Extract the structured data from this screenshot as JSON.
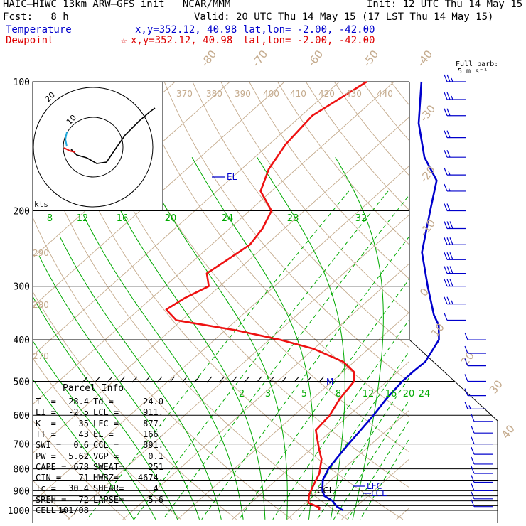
{
  "header": {
    "model_line": "HAIC–HIWC 13km ARW–GFS init   NCAR/MMM",
    "init": "Init: 12 UTC Thu 14 May 15",
    "fcst": "Fcst:   8 h",
    "valid": "Valid: 20 UTC Thu 14 May 15 (17 LST Thu 14 May 15)",
    "temperature_label": "Temperature",
    "temperature_xy": "x,y=352.12, 40.98",
    "temperature_latlon": "lat,lon= -2.00, -42.00",
    "dewpoint_label": "Dewpoint",
    "dewpoint_marker": "☆",
    "dewpoint_xy": "x,y=352.12, 40.98",
    "dewpoint_latlon": "lat,lon= -2.00, -42.00"
  },
  "wind_legend": {
    "title": "Full barb:",
    "speed": "5 m s⁻¹"
  },
  "hodograph": {
    "unit_label": "kts",
    "ring_labels": [
      "10",
      "20"
    ]
  },
  "parcel_info": {
    "title": "Parcel Info",
    "rows": [
      {
        "l1": "T  =",
        "v1": "28.4",
        "l2": "Td =",
        "v2": "24.0"
      },
      {
        "l1": "LI =",
        "v1": "-2.5",
        "l2": "LCL =",
        "v2": "911."
      },
      {
        "l1": "K  =",
        "v1": "35",
        "l2": "LFC =",
        "v2": "877."
      },
      {
        "l1": "TT =",
        "v1": "43",
        "l2": "EL =",
        "v2": "166."
      },
      {
        "l1": "SWI =",
        "v1": "0.6",
        "l2": "CCL =",
        "v2": "891."
      },
      {
        "l1": "PW =",
        "v1": "5.62",
        "l2": "VGP =",
        "v2": "0.1"
      },
      {
        "l1": "CAPE =",
        "v1": "678",
        "l2": "SWEAT=",
        "v2": "251"
      },
      {
        "l1": "CIN =",
        "v1": "-71",
        "l2": "HWBZ=",
        "v2": "4674."
      },
      {
        "l1": "Tc =",
        "v1": "30.4",
        "l2": "SHEAR=",
        "v2": "4."
      },
      {
        "l1": "SREH =",
        "v1": "72",
        "l2": "LAPSE=",
        "v2": "5.6"
      },
      {
        "l1": "CELL =",
        "v1": "101/08",
        "l2": "",
        "v2": ""
      }
    ]
  },
  "colors": {
    "temperature": "#0000cc",
    "dewpoint": "#ee1111",
    "mixing_ratio": "#00aa00",
    "isotherm_adiabat": "#c4aa8c",
    "frame": "#000000"
  },
  "chart_data": {
    "type": "skew-t",
    "pressure_levels_labels": [
      "100",
      "200",
      "300",
      "400",
      "500",
      "600",
      "700",
      "800",
      "900",
      "1000"
    ],
    "temperature_profile": {
      "name": "Temperature",
      "pressure_hPa": [
        1000,
        980,
        950,
        925,
        900,
        850,
        800,
        750,
        700,
        650,
        600,
        550,
        500,
        475,
        450,
        400,
        370,
        350,
        300,
        250,
        200,
        170,
        150,
        125,
        100
      ],
      "temp_C": [
        28.4,
        26.5,
        24.5,
        22.0,
        20.6,
        18.5,
        17.2,
        16.5,
        15.8,
        15.2,
        14.5,
        13.5,
        12.8,
        12.8,
        13.0,
        11.0,
        8.0,
        5.0,
        -2.0,
        -10.0,
        -17.0,
        -22.0,
        -29.0,
        -37.0,
        -45.0
      ]
    },
    "dewpoint_profile": {
      "name": "Dewpoint",
      "pressure_hPa": [
        1000,
        985,
        960,
        920,
        880,
        820,
        760,
        720,
        650,
        600,
        550,
        500,
        475,
        450,
        420,
        400,
        380,
        360,
        340,
        320,
        300,
        280,
        260,
        240,
        220,
        200,
        180,
        160,
        140,
        120,
        100
      ],
      "dewpoint_C": [
        24.0,
        23.5,
        20.5,
        19.0,
        18.0,
        16.5,
        14.0,
        11.5,
        7.0,
        6.5,
        5.0,
        4.0,
        2.0,
        -2.0,
        -10.0,
        -18.0,
        -28.0,
        -41.0,
        -45.0,
        -44.0,
        -42.0,
        -45.0,
        -44.0,
        -43.0,
        -44.0,
        -46.0,
        -52.0,
        -55.0,
        -57.0,
        -58.0,
        -55.0
      ]
    },
    "isotherm_labels_C": [
      -80,
      -70,
      -60,
      -50,
      -40,
      -30,
      -20,
      -10,
      0,
      10,
      20,
      30,
      40
    ],
    "theta_labels_K": [
      270,
      280,
      290,
      370,
      380,
      390,
      400,
      410,
      420,
      430,
      440
    ],
    "mixing_ratio_labels_top_gkg": [
      "8",
      "12",
      "16",
      "20",
      "24",
      "28",
      "32"
    ],
    "mixing_ratio_labels_mid_gkg": [
      "2",
      "3",
      "5",
      "8",
      "12",
      "16",
      "20",
      "24"
    ],
    "level_labels": {
      "el": "EL",
      "lfc": "LFC",
      "lcl": "LCL",
      "ccl": "CCL",
      "melting": "M"
    },
    "wind_barbs": {
      "pressure_hPa": [
        100,
        110,
        120,
        135,
        150,
        165,
        180,
        200,
        220,
        240,
        260,
        280,
        300,
        330,
        360,
        400,
        430,
        460,
        500,
        540,
        580,
        620,
        660,
        700,
        740,
        780,
        820,
        860,
        900,
        940,
        980
      ],
      "speed_ms": [
        12,
        12,
        10,
        10,
        10,
        8,
        8,
        10,
        14,
        14,
        16,
        16,
        14,
        12,
        6,
        4,
        4,
        4,
        4,
        6,
        8,
        6,
        6,
        6,
        6,
        4,
        4,
        6,
        6,
        6,
        6
      ]
    }
  }
}
